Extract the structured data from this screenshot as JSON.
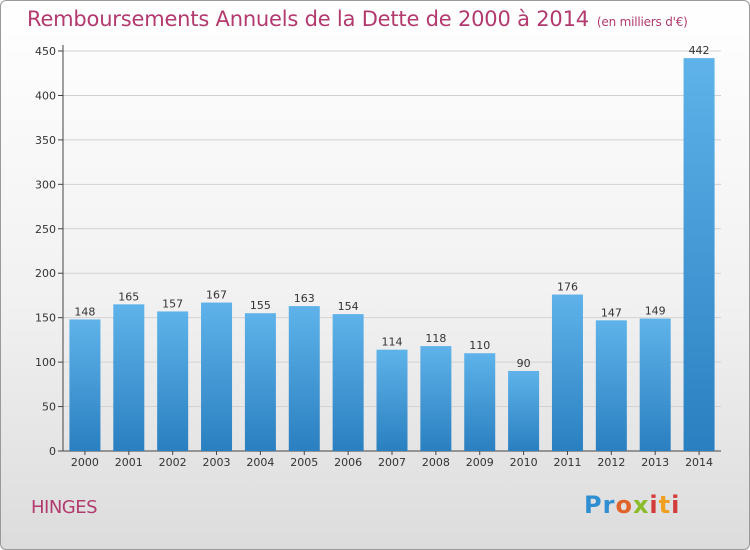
{
  "title": "Remboursements Annuels de la Dette de 2000 à 2014",
  "subtitle": "(en milliers d'€)",
  "commune": "HINGES",
  "logo": "Proxiti",
  "colors": {
    "title": "#b23a6e",
    "bar_top": "#5fb3ea",
    "bar_bottom": "#2a7fc0"
  },
  "chart_data": {
    "type": "bar",
    "title": "Remboursements Annuels de la Dette de 2000 à 2014",
    "subtitle": "(en milliers d'€)",
    "categories": [
      "2000",
      "2001",
      "2002",
      "2003",
      "2004",
      "2005",
      "2006",
      "2007",
      "2008",
      "2009",
      "2010",
      "2011",
      "2012",
      "2013",
      "2014"
    ],
    "values": [
      148,
      165,
      157,
      167,
      155,
      163,
      154,
      114,
      118,
      110,
      90,
      176,
      147,
      149,
      442
    ],
    "ylim": [
      0,
      450
    ],
    "yticks": [
      0,
      50,
      100,
      150,
      200,
      250,
      300,
      350,
      400,
      450
    ],
    "grid": true,
    "xlabel": "",
    "ylabel": ""
  }
}
